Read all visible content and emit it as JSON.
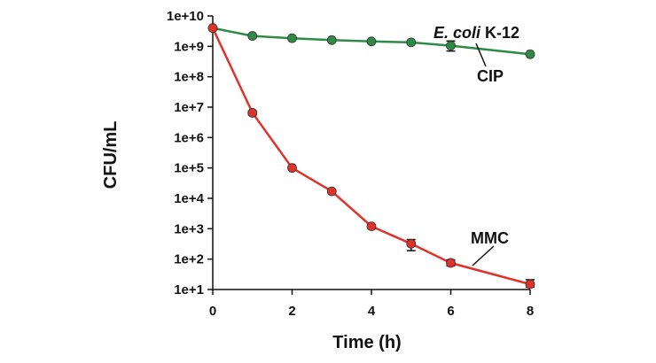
{
  "chart_data": {
    "type": "line",
    "title": "",
    "xlabel": "Time (h)",
    "ylabel": "CFU/mL",
    "y_scale": "log",
    "xlim": [
      0,
      8
    ],
    "ylim": [
      10,
      10000000000
    ],
    "x_ticks": [
      "0",
      "2",
      "4",
      "6",
      "8"
    ],
    "y_ticks": [
      "1e+1",
      "1e+2",
      "1e+3",
      "1e+4",
      "1e+5",
      "1e+6",
      "1e+7",
      "1e+8",
      "1e+9",
      "1e+10"
    ],
    "grid": false,
    "series": [
      {
        "name": "CIP",
        "color": "#2e8b45",
        "x": [
          0,
          1,
          2,
          3,
          4,
          5,
          6,
          8
        ],
        "y": [
          4000000000,
          2200000000,
          1850000000,
          1600000000,
          1450000000,
          1350000000,
          1050000000,
          550000000
        ],
        "err_low": [
          0,
          0,
          0,
          0,
          0,
          0,
          350000000,
          0
        ],
        "err_high": [
          0,
          0,
          0,
          0,
          0,
          0,
          450000000,
          0
        ]
      },
      {
        "name": "MMC",
        "color": "#e0312a",
        "x": [
          0,
          1,
          2,
          3,
          4,
          5,
          6,
          8
        ],
        "y": [
          4000000000,
          6500000,
          100000,
          17000,
          1200,
          320,
          75,
          15
        ],
        "err_low": [
          0,
          1000000,
          0,
          0,
          150,
          130,
          15,
          3
        ],
        "err_high": [
          0,
          1000000,
          0,
          0,
          150,
          120,
          20,
          6
        ]
      }
    ],
    "annotations": {
      "organism_italic": "E. coli",
      "organism_suffix": " K-12",
      "cip_label": "CIP",
      "mmc_label": "MMC"
    }
  }
}
